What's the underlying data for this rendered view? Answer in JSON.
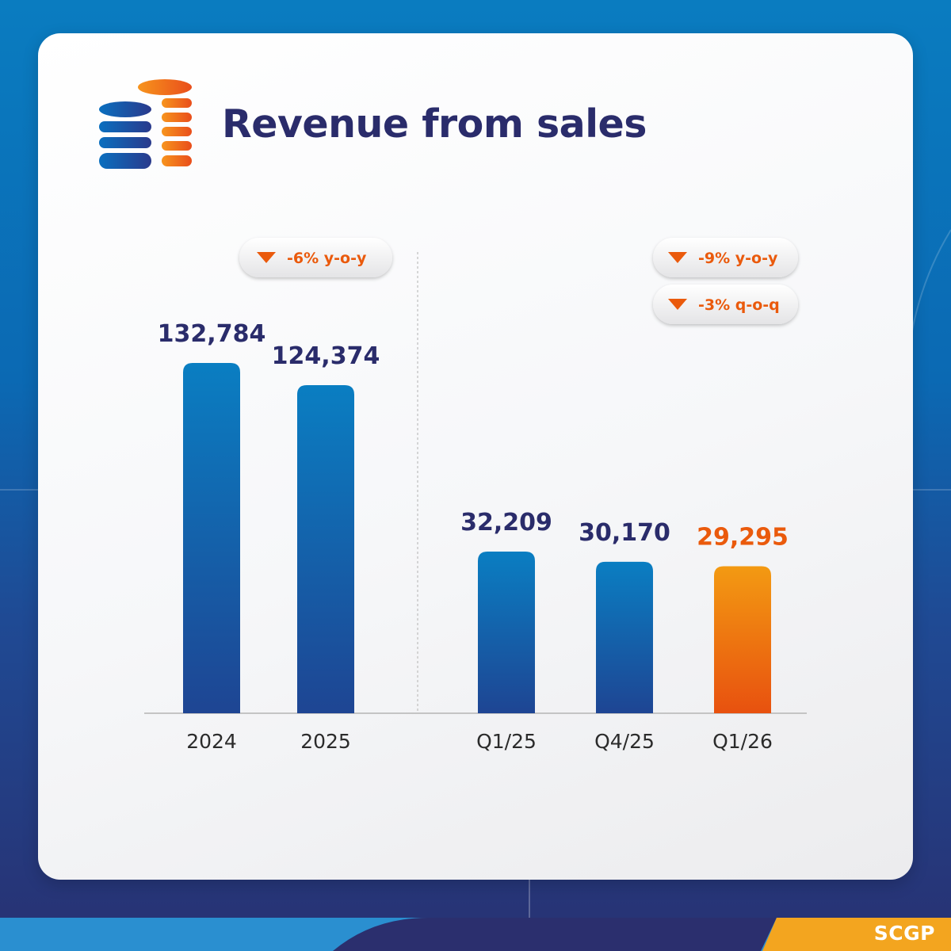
{
  "title": "Revenue from sales",
  "brand": "SCGP",
  "colors": {
    "navy": "#2a2c6b",
    "orange": "#ea5a0c",
    "bar_blue_top": "#0a7ec2",
    "bar_blue_bottom": "#1e4593",
    "bar_orange_top": "#f39a12",
    "bar_orange_bottom": "#e8510f"
  },
  "icons": {
    "title_icon": "coin-stack-icon",
    "badge_icon": "down-triangle-icon"
  },
  "badges": {
    "annual_yoy": "-6% y-o-y",
    "quarter_yoy": "-9% y-o-y",
    "quarter_qoq": "-3% q-o-q"
  },
  "chart_data": [
    {
      "type": "bar",
      "categories": [
        "2024",
        "2025"
      ],
      "values": [
        132784,
        124374
      ],
      "value_labels": [
        "132,784",
        "124,374"
      ],
      "title": "",
      "xlabel": "",
      "ylabel": "",
      "grid": false
    },
    {
      "type": "bar",
      "categories": [
        "Q1/25",
        "Q4/25",
        "Q1/26"
      ],
      "values": [
        32209,
        30170,
        29295
      ],
      "value_labels": [
        "32,209",
        "30,170",
        "29,295"
      ],
      "highlight": "Q1/26",
      "title": "",
      "xlabel": "",
      "ylabel": "",
      "grid": false
    }
  ]
}
